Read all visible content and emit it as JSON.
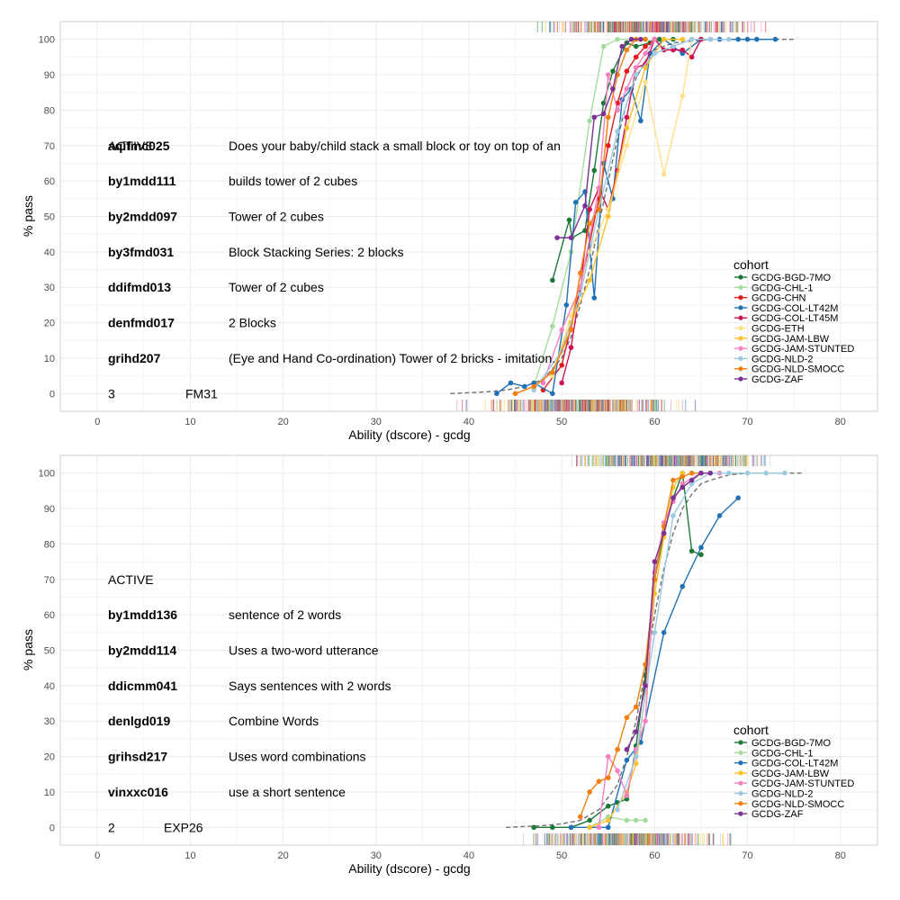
{
  "chart_data": [
    {
      "type": "line",
      "xlabel": "Ability (dscore) - gcdg",
      "ylabel": "% pass",
      "xlim": [
        -4,
        84
      ],
      "ylim": [
        -5,
        105
      ],
      "xticks": [
        0,
        10,
        20,
        30,
        40,
        50,
        60,
        70,
        80
      ],
      "yticks": [
        0,
        10,
        20,
        30,
        40,
        50,
        60,
        70,
        80,
        90,
        100
      ],
      "grid": true,
      "legend": {
        "title": "cohort",
        "position": "right"
      },
      "status": "ACTIVE",
      "items": [
        {
          "code": "aqifmc025",
          "label": "Does your baby/child stack a small block or toy on top of an"
        },
        {
          "code": "by1mdd111",
          "label": "builds tower of 2 cubes"
        },
        {
          "code": "by2mdd097",
          "label": "Tower of 2 cubes"
        },
        {
          "code": "by3fmd031",
          "label": "Block Stacking Series: 2 blocks"
        },
        {
          "code": "ddifmd013",
          "label": "Tower of 2 cubes"
        },
        {
          "code": "denfmd017",
          "label": "2 Blocks"
        },
        {
          "code": "grihd207",
          "label": "(Eye and Hand Co-ordination)  Tower of 2 bricks - imitation."
        }
      ],
      "footer": {
        "number": "3",
        "code": "FM31"
      },
      "reference_curve": {
        "x": [
          38,
          42,
          44,
          46,
          48,
          50,
          51,
          52,
          53,
          54,
          55,
          56,
          57,
          58,
          59,
          60,
          62,
          64,
          66,
          70,
          75
        ],
        "y": [
          0,
          0.5,
          1,
          2,
          4,
          10,
          16,
          25,
          35,
          48,
          60,
          72,
          82,
          89,
          94,
          97,
          99,
          99.5,
          100,
          100,
          100
        ]
      },
      "series": [
        {
          "name": "GCDG-BGD-7MO",
          "color": "#1B7837",
          "x": [
            49,
            50.8,
            51.1,
            52.5,
            53.5,
            54.5,
            55.5,
            57,
            58,
            59.5,
            60.5,
            62
          ],
          "y": [
            32,
            49,
            44,
            46,
            63,
            82,
            91,
            99,
            98,
            99,
            100,
            100
          ]
        },
        {
          "name": "GCDG-CHL-1",
          "color": "#A6DBA0",
          "x": [
            47,
            49,
            51,
            53,
            54.5,
            56,
            57.5,
            59
          ],
          "y": [
            2,
            19,
            40,
            77,
            98,
            100,
            100,
            100
          ]
        },
        {
          "name": "GCDG-CHN",
          "color": "#E41A1C",
          "x": [
            48,
            50,
            52,
            54,
            55,
            56,
            57,
            58,
            59,
            60
          ],
          "y": [
            1,
            8,
            30,
            55,
            70,
            82,
            91,
            95,
            98,
            100
          ]
        },
        {
          "name": "GCDG-COL-LT42M",
          "color": "#2171B5",
          "x": [
            43,
            44.5,
            46,
            47,
            49,
            50.5,
            51.5,
            52.5,
            53.5,
            54.5,
            55.5,
            56.5,
            57.5,
            58.5,
            59.5,
            61,
            62,
            63,
            65,
            67,
            69,
            70,
            71,
            73
          ],
          "y": [
            0,
            3,
            2,
            3,
            0,
            25,
            54,
            57,
            27,
            65,
            55,
            83,
            86,
            77,
            96,
            100,
            98,
            96,
            100,
            100,
            100,
            100,
            100,
            100
          ]
        },
        {
          "name": "GCDG-COL-LT45M",
          "color": "#CE1256",
          "x": [
            50,
            51,
            52,
            53,
            54,
            55,
            56,
            57,
            58,
            59,
            60,
            61,
            62,
            63,
            64,
            65,
            66
          ],
          "y": [
            3,
            13,
            30,
            52,
            58,
            52,
            63,
            78,
            92,
            93,
            100,
            97,
            97,
            97,
            95,
            100,
            100
          ]
        },
        {
          "name": "GCDG-ETH",
          "color": "#FEE08B",
          "x": [
            49,
            51,
            53,
            55,
            57,
            59,
            61,
            63,
            64
          ],
          "y": [
            5,
            22,
            40,
            52,
            70,
            88,
            62,
            84,
            100
          ]
        },
        {
          "name": "GCDG-JAM-LBW",
          "color": "#FDC12C",
          "x": [
            49,
            51,
            53,
            55,
            57,
            59,
            61,
            63
          ],
          "y": [
            6,
            20,
            32,
            50,
            75,
            92,
            100,
            100
          ]
        },
        {
          "name": "GCDG-JAM-STUNTED",
          "color": "#F781BF",
          "x": [
            48,
            50,
            52,
            54,
            55,
            56,
            57,
            58,
            59,
            60
          ],
          "y": [
            3,
            18,
            30,
            58,
            90,
            80,
            86,
            92,
            96,
            100
          ]
        },
        {
          "name": "GCDG-NLD-2",
          "color": "#9ECAE1",
          "x": [
            47,
            50,
            52,
            54,
            56,
            58,
            60,
            62,
            64,
            66,
            68
          ],
          "y": [
            1,
            12,
            28,
            52,
            74,
            90,
            96,
            98,
            100,
            100,
            100
          ]
        },
        {
          "name": "GCDG-NLD-SMOCC",
          "color": "#F07F10",
          "x": [
            45,
            47,
            49,
            51,
            52,
            53,
            54,
            55,
            56,
            57,
            58,
            59
          ],
          "y": [
            0,
            2,
            6,
            18,
            34,
            48,
            52,
            78,
            90,
            97,
            100,
            100
          ]
        },
        {
          "name": "GCDG-ZAF",
          "color": "#7B3294",
          "x": [
            49.5,
            51,
            52.5,
            53.5,
            54.5,
            55.5,
            56.5,
            57.5,
            58.5
          ],
          "y": [
            44,
            44,
            53,
            78,
            79,
            86,
            98,
            100,
            100
          ]
        }
      ]
    },
    {
      "type": "line",
      "xlabel": "Ability (dscore) - gcdg",
      "ylabel": "% pass",
      "xlim": [
        -4,
        84
      ],
      "ylim": [
        -5,
        105
      ],
      "xticks": [
        0,
        10,
        20,
        30,
        40,
        50,
        60,
        70,
        80
      ],
      "yticks": [
        0,
        10,
        20,
        30,
        40,
        50,
        60,
        70,
        80,
        90,
        100
      ],
      "grid": true,
      "legend": {
        "title": "cohort",
        "position": "right"
      },
      "status": "ACTIVE",
      "items": [
        {
          "code": "by1mdd136",
          "label": "sentence of 2 words"
        },
        {
          "code": "by2mdd114",
          "label": "Uses a two-word utterance"
        },
        {
          "code": "ddicmm041",
          "label": "Says sentences with 2 words"
        },
        {
          "code": "denlgd019",
          "label": "Combine Words"
        },
        {
          "code": "grihsd217",
          "label": "Uses word combinations"
        },
        {
          "code": "vinxxc016",
          "label": "use a short sentence"
        }
      ],
      "footer": {
        "number": "2",
        "code": "EXP26"
      },
      "reference_curve": {
        "x": [
          44,
          48,
          50,
          52,
          54,
          56,
          57,
          58,
          59,
          60,
          61,
          62,
          63,
          64,
          65,
          66,
          68,
          70,
          72,
          76
        ],
        "y": [
          0,
          0.5,
          1,
          2,
          5,
          12,
          20,
          30,
          44,
          60,
          73,
          83,
          90,
          94,
          97,
          98,
          99.5,
          100,
          100,
          100
        ]
      },
      "series": [
        {
          "name": "GCDG-BGD-7MO",
          "color": "#1B7837",
          "x": [
            47,
            49,
            51,
            53,
            55,
            56,
            57,
            58,
            59,
            60,
            61,
            62,
            63,
            64,
            65
          ],
          "y": [
            0,
            0,
            0,
            2,
            6,
            7,
            8,
            23,
            43,
            70,
            83,
            93,
            100,
            78,
            77
          ]
        },
        {
          "name": "GCDG-CHL-1",
          "color": "#A6DBA0",
          "x": [
            53,
            55,
            57,
            58,
            59
          ],
          "y": [
            0,
            3,
            2,
            2,
            2
          ]
        },
        {
          "name": "GCDG-COL-LT42M",
          "color": "#2171B5",
          "x": [
            51,
            53,
            55,
            57,
            58.5,
            61,
            63,
            65,
            67,
            69
          ],
          "y": [
            0,
            0,
            0,
            19,
            24,
            55,
            68,
            79,
            88,
            93
          ]
        },
        {
          "name": "GCDG-JAM-LBW",
          "color": "#FDC12C",
          "x": [
            53,
            55,
            57,
            58,
            59,
            60,
            61,
            62,
            63
          ],
          "y": [
            0,
            2,
            10,
            18,
            38,
            66,
            82,
            96,
            100
          ]
        },
        {
          "name": "GCDG-JAM-STUNTED",
          "color": "#F781BF",
          "x": [
            54,
            55,
            56,
            57,
            58,
            59,
            60,
            61,
            62,
            63,
            65,
            67
          ],
          "y": [
            0,
            20,
            16,
            9,
            22,
            30,
            72,
            86,
            92,
            97,
            100,
            100
          ]
        },
        {
          "name": "GCDG-NLD-2",
          "color": "#9ECAE1",
          "x": [
            56,
            58,
            60,
            62,
            64,
            66,
            68,
            70,
            72,
            74
          ],
          "y": [
            5,
            20,
            55,
            88,
            97,
            100,
            100,
            100,
            100,
            100
          ]
        },
        {
          "name": "GCDG-NLD-SMOCC",
          "color": "#F07F10",
          "x": [
            52,
            53,
            54,
            55,
            56,
            57,
            58,
            59,
            60,
            61,
            62,
            63,
            64,
            65
          ],
          "y": [
            3,
            10,
            13,
            14,
            22,
            31,
            34,
            46,
            70,
            85,
            98,
            99,
            100,
            100
          ]
        },
        {
          "name": "GCDG-ZAF",
          "color": "#7B3294",
          "x": [
            57,
            58,
            59,
            60,
            61,
            62,
            63,
            64,
            65,
            66
          ],
          "y": [
            22,
            27,
            40,
            75,
            83,
            93,
            96,
            98,
            100,
            100
          ]
        }
      ]
    }
  ]
}
